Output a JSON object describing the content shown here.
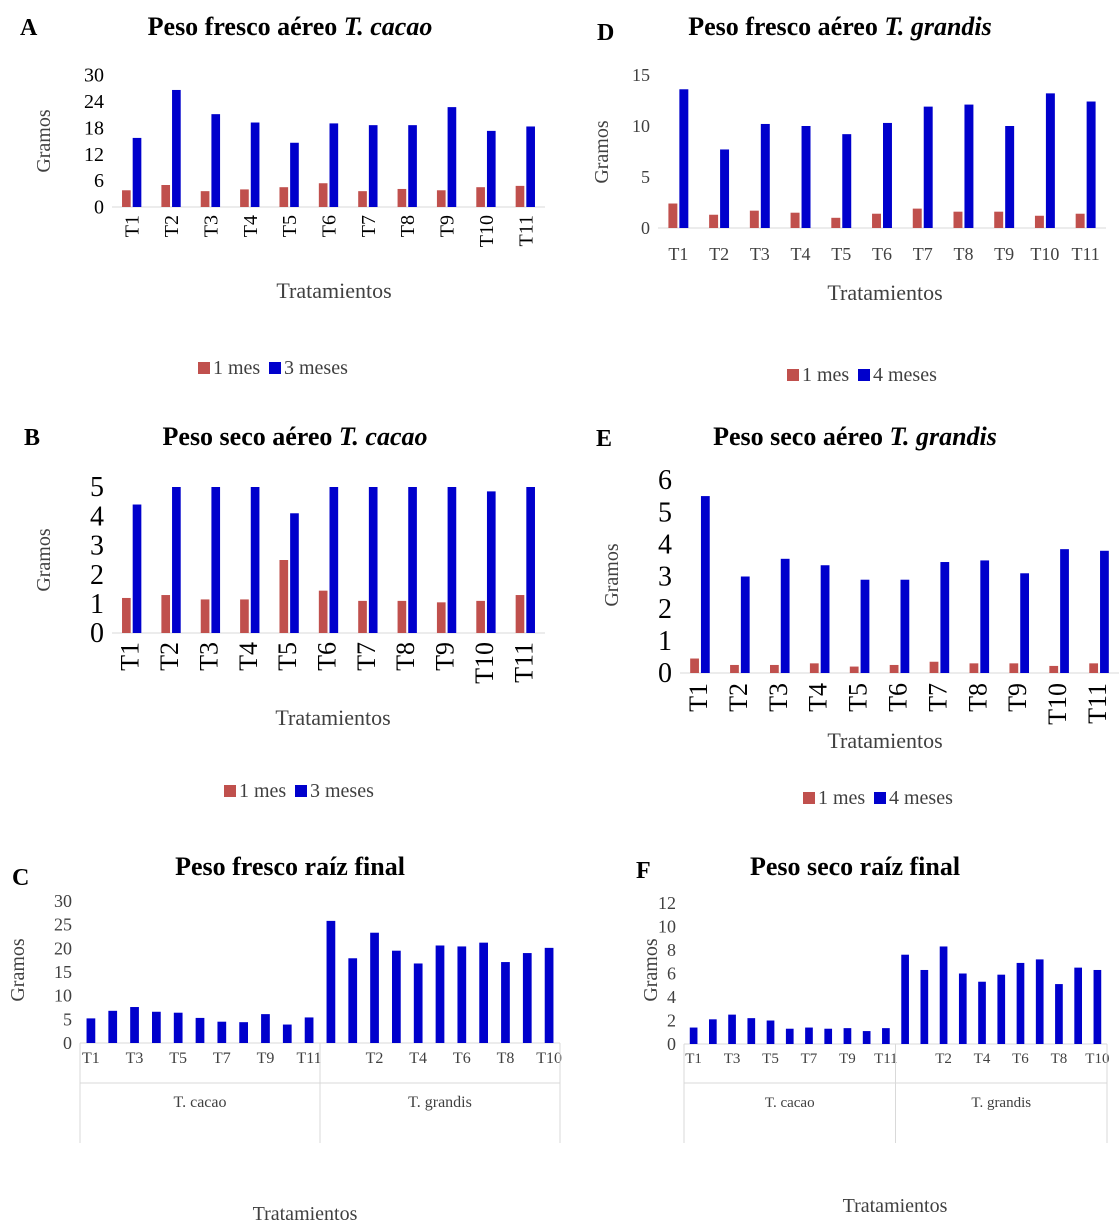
{
  "colors": {
    "series1": "#c0504d",
    "series2": "#0000cc",
    "axis": "#d9d9d9",
    "text": "#000000",
    "label": "#404040"
  },
  "chart_data": [
    {
      "id": "A",
      "letter": "A",
      "type": "bar",
      "title": "Peso fresco aéreo ",
      "title_italic": "T. cacao",
      "xlabel": "Tratamientos",
      "ylabel": "Gramos",
      "ylim": [
        0,
        30
      ],
      "yticks": [
        0,
        6,
        12,
        18,
        24,
        30
      ],
      "categories": [
        "T1",
        "T2",
        "T3",
        "T4",
        "T5",
        "T6",
        "T7",
        "T8",
        "T9",
        "T10",
        "T11"
      ],
      "series": [
        {
          "name": "1 mes",
          "values": [
            3.8,
            5.0,
            3.6,
            4.0,
            4.5,
            5.4,
            3.6,
            4.1,
            3.8,
            4.5,
            4.8
          ]
        },
        {
          "name": "3 meses",
          "values": [
            15.7,
            26.6,
            21.1,
            19.2,
            14.6,
            19.0,
            18.6,
            18.6,
            22.7,
            17.3,
            18.3
          ]
        }
      ],
      "legend_position": "bottom"
    },
    {
      "id": "B",
      "letter": "B",
      "type": "bar",
      "title": "Peso seco aéreo ",
      "title_italic": "T. cacao",
      "xlabel": "Tratamientos",
      "ylabel": "Gramos",
      "ylim": [
        0,
        5
      ],
      "yticks": [
        0,
        1,
        2,
        3,
        4,
        5
      ],
      "categories": [
        "T1",
        "T2",
        "T3",
        "T4",
        "T5",
        "T6",
        "T7",
        "T8",
        "T9",
        "T10",
        "T11"
      ],
      "series": [
        {
          "name": "1 mes",
          "values": [
            1.2,
            1.3,
            1.15,
            1.15,
            2.5,
            1.45,
            1.1,
            1.1,
            1.05,
            1.1,
            1.3
          ]
        },
        {
          "name": "3 meses",
          "values": [
            4.4,
            5.0,
            5.0,
            5.0,
            4.1,
            5.0,
            5.0,
            5.0,
            5.0,
            4.85,
            5.0
          ]
        }
      ],
      "legend_position": "bottom"
    },
    {
      "id": "C",
      "letter": "C",
      "type": "bar",
      "title": "Peso fresco raíz final",
      "title_italic": "",
      "xlabel": "Tratamientos",
      "ylabel": "Gramos",
      "ylim": [
        0,
        30
      ],
      "yticks": [
        0,
        5,
        10,
        15,
        20,
        25,
        30
      ],
      "categories": [
        "T1",
        "T2",
        "T3",
        "T4",
        "T5",
        "T6",
        "T7",
        "T8",
        "T9",
        "T10",
        "T11",
        "T1",
        "T2",
        "T3",
        "T4",
        "T5",
        "T6",
        "T7",
        "T8",
        "T9",
        "T10",
        "T11"
      ],
      "tick_labels": [
        "T1",
        "T3",
        "T5",
        "T7",
        "T9",
        "T11",
        "T2",
        "T4",
        "T6",
        "T8",
        "T10"
      ],
      "groups": [
        "T. cacao",
        "T. grandis"
      ],
      "values": [
        5.2,
        6.8,
        7.6,
        6.6,
        6.4,
        5.3,
        4.5,
        4.4,
        6.1,
        3.9,
        5.4,
        25.8,
        17.9,
        23.3,
        19.5,
        16.8,
        20.6,
        20.4,
        21.2,
        17.1,
        19.0,
        20.1
      ]
    },
    {
      "id": "D",
      "letter": "D",
      "type": "bar",
      "title": "Peso fresco aéreo ",
      "title_italic": "T. grandis",
      "xlabel": "Tratamientos",
      "ylabel": "Gramos",
      "ylim": [
        0,
        15
      ],
      "yticks": [
        0,
        5,
        10,
        15
      ],
      "categories": [
        "T1",
        "T2",
        "T3",
        "T4",
        "T5",
        "T6",
        "T7",
        "T8",
        "T9",
        "T10",
        "T11"
      ],
      "series": [
        {
          "name": "1 mes",
          "values": [
            2.4,
            1.3,
            1.7,
            1.5,
            1.0,
            1.4,
            1.9,
            1.6,
            1.6,
            1.2,
            1.4
          ]
        },
        {
          "name": "4 meses",
          "values": [
            13.6,
            7.7,
            10.2,
            10.0,
            9.2,
            10.3,
            11.9,
            12.1,
            10.0,
            13.2,
            12.4
          ]
        }
      ],
      "legend_position": "bottom"
    },
    {
      "id": "E",
      "letter": "E",
      "type": "bar",
      "title": "Peso seco aéreo ",
      "title_italic": "T. grandis",
      "xlabel": "Tratamientos",
      "ylabel": "Gramos",
      "ylim": [
        0,
        6
      ],
      "yticks": [
        0,
        1,
        2,
        3,
        4,
        5,
        6
      ],
      "categories": [
        "T1",
        "T2",
        "T3",
        "T4",
        "T5",
        "T6",
        "T7",
        "T8",
        "T9",
        "T10",
        "T11"
      ],
      "series": [
        {
          "name": "1 mes",
          "values": [
            0.45,
            0.25,
            0.25,
            0.3,
            0.2,
            0.25,
            0.35,
            0.3,
            0.3,
            0.22,
            0.3
          ]
        },
        {
          "name": "4 meses",
          "values": [
            5.5,
            3.0,
            3.55,
            3.35,
            2.9,
            2.9,
            3.45,
            3.5,
            3.1,
            3.85,
            3.8
          ]
        }
      ],
      "legend_position": "bottom"
    },
    {
      "id": "F",
      "letter": "F",
      "type": "bar",
      "title": "Peso seco raíz final",
      "title_italic": "",
      "xlabel": "Tratamientos",
      "ylabel": "Gramos",
      "ylim": [
        0,
        12
      ],
      "yticks": [
        0,
        2,
        4,
        6,
        8,
        10,
        12
      ],
      "categories": [
        "T1",
        "T2",
        "T3",
        "T4",
        "T5",
        "T6",
        "T7",
        "T8",
        "T9",
        "T10",
        "T11",
        "T1",
        "T2",
        "T3",
        "T4",
        "T5",
        "T6",
        "T7",
        "T8",
        "T9",
        "T10",
        "T11"
      ],
      "tick_labels": [
        "T1",
        "T3",
        "T5",
        "T7",
        "T9",
        "T11",
        "T2",
        "T4",
        "T6",
        "T8",
        "T10"
      ],
      "groups": [
        "T. cacao",
        "T. grandis"
      ],
      "values": [
        1.4,
        2.1,
        2.5,
        2.2,
        2.0,
        1.3,
        1.4,
        1.3,
        1.35,
        1.1,
        1.35,
        7.6,
        6.3,
        8.3,
        6.0,
        5.3,
        5.9,
        6.9,
        7.2,
        5.1,
        6.5,
        6.3
      ]
    }
  ]
}
